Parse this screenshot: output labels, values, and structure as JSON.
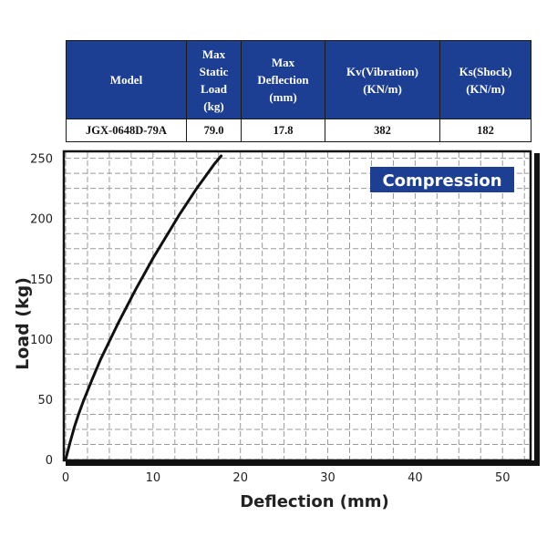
{
  "spec_table": {
    "headers": [
      [
        "Model"
      ],
      [
        "Max",
        "Static",
        "Load",
        "(kg)"
      ],
      [
        "Max",
        "Deflection",
        "(mm)"
      ],
      [
        "Kv(Vibration)",
        "(KN/m)"
      ],
      [
        "Ks(Shock)",
        "(KN/m)"
      ]
    ],
    "row": [
      "JGX-0648D-79A",
      "79.0",
      "17.8",
      "382",
      "182"
    ]
  },
  "chart_data": {
    "type": "line",
    "annotation": "Compression",
    "xlabel": "Deflection (mm)",
    "ylabel": "Load (kg)",
    "xlim": [
      0,
      53
    ],
    "ylim": [
      0,
      255
    ],
    "x_ticks": [
      0,
      10,
      20,
      30,
      40,
      50
    ],
    "y_ticks": [
      0,
      50,
      100,
      150,
      200,
      250
    ],
    "grid": true,
    "colors": {
      "curve": "#111111",
      "annotation_bg": "#1d3f93",
      "annotation_text": "#ffffff",
      "grid": "#9a9a9a"
    },
    "series": [
      {
        "x": [
          0,
          0.5,
          1,
          1.5,
          2,
          3,
          4,
          5,
          6,
          7,
          8,
          9,
          10,
          11,
          12,
          13,
          14,
          15,
          16,
          17,
          17.8
        ],
        "y": [
          0,
          14,
          27,
          38,
          48,
          66,
          83,
          98,
          113,
          127,
          141,
          154,
          167,
          179,
          191,
          203,
          214,
          225,
          235,
          245,
          252
        ]
      }
    ]
  }
}
